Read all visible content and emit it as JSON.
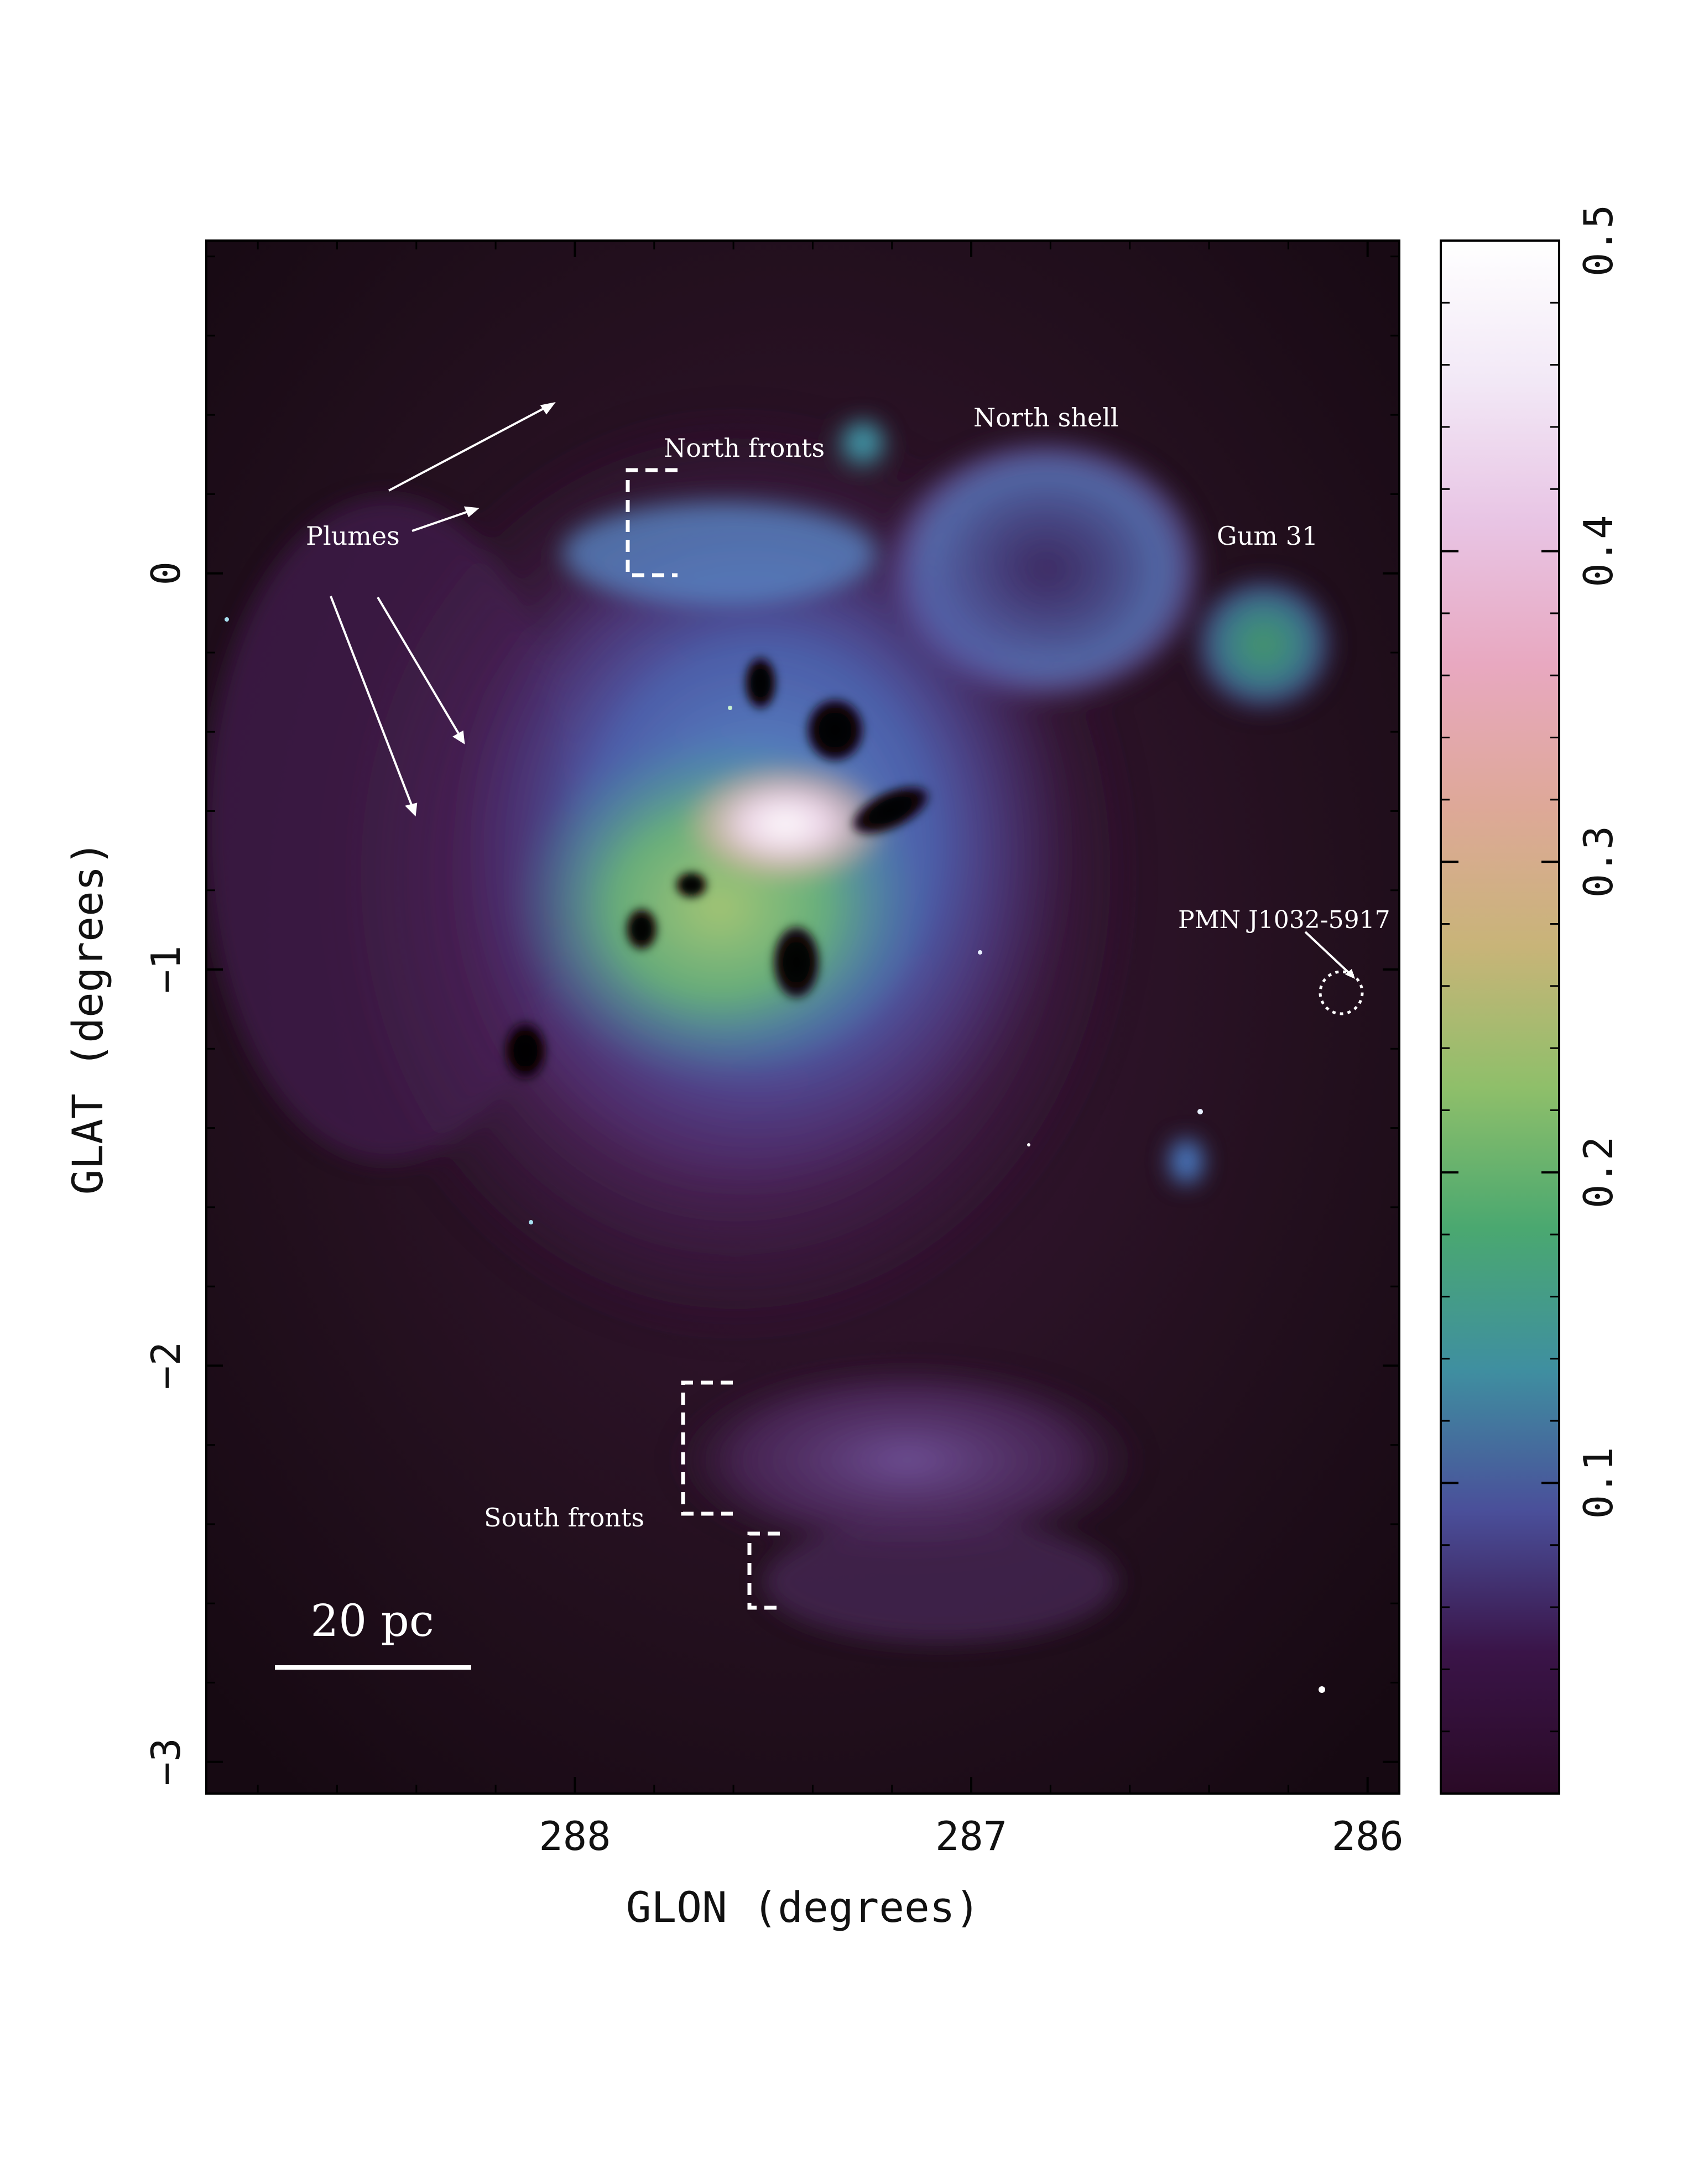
{
  "figure": {
    "x_axis": {
      "label": "GLON (degrees)",
      "ticks": [
        {
          "value": 288,
          "label": "288"
        },
        {
          "value": 287,
          "label": "287"
        },
        {
          "value": 286,
          "label": "286"
        }
      ],
      "range_deg": [
        288.93,
        285.92
      ]
    },
    "y_axis": {
      "label": "GLAT (degrees)",
      "ticks": [
        {
          "value": 0,
          "label": "0"
        },
        {
          "value": -1,
          "label": "−1"
        },
        {
          "value": -2,
          "label": "−2"
        },
        {
          "value": -3,
          "label": "−3"
        }
      ],
      "range_deg": [
        -3.08,
        0.84
      ]
    },
    "colorbar": {
      "ticks": [
        {
          "value": 0.1,
          "label": "0.1"
        },
        {
          "value": 0.2,
          "label": "0.2"
        },
        {
          "value": 0.3,
          "label": "0.3"
        },
        {
          "value": 0.4,
          "label": "0.4"
        },
        {
          "value": 0.5,
          "label": "0.5"
        }
      ],
      "range": [
        0.0,
        0.5
      ],
      "stops": [
        "#2a0a26",
        "#3a1448",
        "#4a4f9a",
        "#3f8fa0",
        "#4aa870",
        "#8fbf6a",
        "#c8b478",
        "#dea898",
        "#e8a8c0",
        "#e8c4e4",
        "#f2e8f6",
        "#ffffff"
      ]
    },
    "annotations": {
      "north_fronts": "North fronts",
      "north_shell": "North shell",
      "gum31": "Gum 31",
      "plumes": "Plumes",
      "pmn": "PMN J1032-5917",
      "south_fronts": "South fronts",
      "scale_bar": "20 pc"
    },
    "colors": {
      "background_dark": "#1c0a1a",
      "nebula_purple": "#5a2a6a",
      "nebula_blue": "#4a78c0",
      "nebula_green": "#6ab870",
      "core_pink": "#f4d8ec"
    }
  }
}
